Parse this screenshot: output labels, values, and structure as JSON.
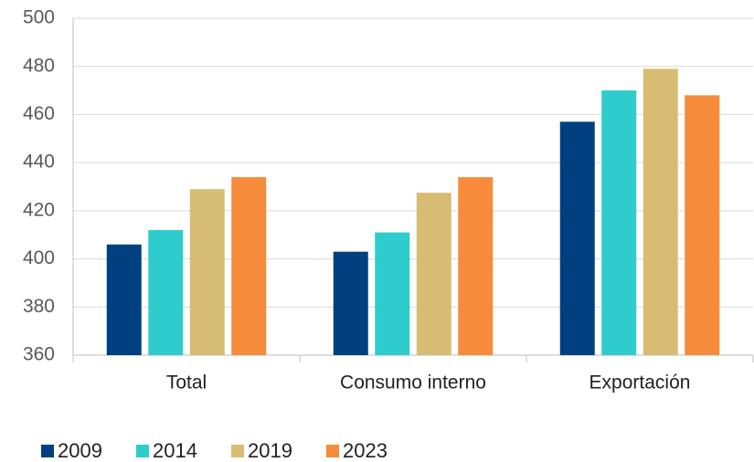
{
  "chart_data": {
    "type": "bar",
    "categories": [
      "Total",
      "Consumo interno",
      "Exportación"
    ],
    "series": [
      {
        "name": "2009",
        "color": "#004080",
        "values": [
          406,
          403,
          457
        ]
      },
      {
        "name": "2014",
        "color": "#2ecccc",
        "values": [
          412,
          411,
          470
        ]
      },
      {
        "name": "2019",
        "color": "#d7bd73",
        "values": [
          429,
          427.5,
          479
        ]
      },
      {
        "name": "2023",
        "color": "#f68b3b",
        "values": [
          434,
          434,
          468
        ]
      }
    ],
    "ylim": [
      360,
      500
    ],
    "yticks": [
      360,
      380,
      400,
      420,
      440,
      460,
      480,
      500
    ],
    "grid": true,
    "legend": "bottom"
  }
}
